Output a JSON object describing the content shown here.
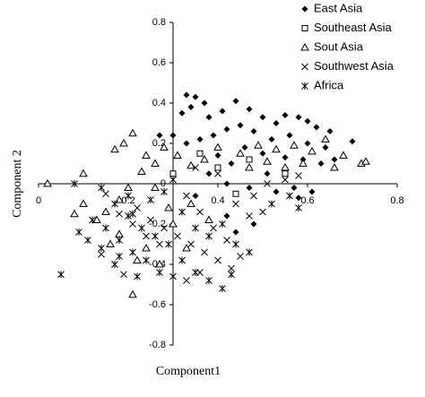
{
  "chart_data": {
    "type": "scatter",
    "xlabel": "Component1",
    "ylabel": "Component 2",
    "xlim": [
      0,
      0.8
    ],
    "ylim": [
      -0.8,
      0.8
    ],
    "xticks": [
      0,
      0.2,
      0.4,
      0.6,
      0.8
    ],
    "yticks": [
      -0.8,
      -0.6,
      -0.4,
      -0.2,
      0,
      0.2,
      0.4,
      0.6,
      0.8
    ],
    "y_axis_at_x": 0.3,
    "legend": "top-right",
    "series": [
      {
        "name": "East Asia",
        "color": "#000000",
        "marker": "diamond",
        "x": [
          0.33,
          0.35,
          0.37,
          0.34,
          0.32,
          0.38,
          0.41,
          0.44,
          0.47,
          0.5,
          0.53,
          0.55,
          0.58,
          0.6,
          0.62,
          0.65,
          0.7,
          0.56,
          0.52,
          0.48,
          0.45,
          0.42,
          0.39,
          0.36,
          0.33,
          0.3,
          0.27,
          0.46,
          0.5,
          0.55,
          0.59,
          0.63,
          0.66,
          0.6,
          0.64,
          0.43,
          0.38,
          0.42,
          0.47,
          0.53,
          0.58,
          0.35,
          0.42,
          0.44,
          0.48,
          0.4,
          0.57,
          0.61,
          0.51
        ],
        "values": [
          0.44,
          0.43,
          0.4,
          0.38,
          0.35,
          0.33,
          0.36,
          0.41,
          0.37,
          0.33,
          0.3,
          0.34,
          0.33,
          0.31,
          0.28,
          0.26,
          0.21,
          0.24,
          0.22,
          0.26,
          0.29,
          0.27,
          0.24,
          0.22,
          0.2,
          0.24,
          0.24,
          0.18,
          0.15,
          0.13,
          0.12,
          0.1,
          0.12,
          0.2,
          0.18,
          0.1,
          0.05,
          0.0,
          -0.02,
          -0.04,
          -0.07,
          -0.06,
          -0.16,
          -0.24,
          -0.2,
          0.14,
          -0.02,
          -0.04,
          0.05
        ]
      },
      {
        "name": "Southeast Asia",
        "color": "#000000",
        "marker": "square",
        "x": [
          0.36,
          0.4,
          0.47,
          0.55,
          0.3,
          0.44
        ],
        "values": [
          0.15,
          0.08,
          0.12,
          0.05,
          0.05,
          -0.05
        ]
      },
      {
        "name": "Sout Asia",
        "color": "#000000",
        "marker": "triangle",
        "x": [
          0.02,
          0.1,
          0.1,
          0.08,
          0.17,
          0.21,
          0.19,
          0.24,
          0.26,
          0.23,
          0.28,
          0.31,
          0.34,
          0.37,
          0.4,
          0.45,
          0.49,
          0.53,
          0.57,
          0.61,
          0.64,
          0.66,
          0.72,
          0.73,
          0.68,
          0.59,
          0.55,
          0.51,
          0.47,
          0.2,
          0.18,
          0.15,
          0.13,
          0.18,
          0.16,
          0.22,
          0.27,
          0.24,
          0.21,
          0.3,
          0.34,
          0.38,
          0.33,
          0.29,
          0.26
        ],
        "values": [
          0.0,
          0.05,
          -0.1,
          -0.15,
          0.17,
          0.25,
          0.2,
          0.14,
          0.1,
          0.06,
          0.18,
          0.14,
          0.09,
          0.12,
          0.18,
          0.15,
          0.19,
          0.17,
          0.19,
          0.16,
          0.22,
          0.08,
          0.1,
          0.11,
          0.14,
          0.1,
          0.08,
          0.11,
          0.08,
          -0.02,
          -0.08,
          -0.14,
          -0.18,
          -0.25,
          -0.3,
          -0.38,
          -0.4,
          -0.32,
          -0.55,
          -0.2,
          -0.1,
          -0.18,
          -0.32,
          -0.12,
          -0.02
        ]
      },
      {
        "name": "Southwest Asia",
        "color": "#000000",
        "marker": "x",
        "x": [
          0.15,
          0.18,
          0.22,
          0.25,
          0.28,
          0.31,
          0.34,
          0.37,
          0.4,
          0.43,
          0.45,
          0.42,
          0.39,
          0.36,
          0.33,
          0.3,
          0.44,
          0.48,
          0.51,
          0.55,
          0.58,
          0.27,
          0.24,
          0.21,
          0.47,
          0.5,
          0.36,
          0.33,
          0.19,
          0.14,
          0.35,
          0.4
        ],
        "values": [
          -0.05,
          -0.15,
          -0.12,
          -0.18,
          -0.22,
          -0.26,
          -0.3,
          -0.34,
          -0.38,
          -0.42,
          -0.36,
          -0.28,
          -0.22,
          -0.14,
          -0.06,
          0.02,
          -0.1,
          -0.06,
          0.0,
          0.02,
          0.04,
          -0.3,
          -0.26,
          -0.2,
          -0.16,
          -0.14,
          -0.44,
          -0.48,
          -0.45,
          -0.35,
          0.08,
          0.05
        ]
      },
      {
        "name": "Africa",
        "color": "#000000",
        "marker": "asterisk",
        "x": [
          0.08,
          0.14,
          0.17,
          0.2,
          0.23,
          0.26,
          0.29,
          0.32,
          0.35,
          0.38,
          0.41,
          0.12,
          0.15,
          0.18,
          0.21,
          0.24,
          0.27,
          0.3,
          0.17,
          0.14,
          0.11,
          0.09,
          0.18,
          0.22,
          0.2,
          0.25,
          0.28,
          0.32,
          0.35,
          0.38,
          0.41,
          0.44,
          0.47,
          0.43,
          0.52,
          0.56,
          0.58,
          0.05,
          0.21
        ],
        "values": [
          0.0,
          -0.02,
          -0.1,
          -0.16,
          -0.22,
          -0.26,
          -0.3,
          -0.38,
          -0.44,
          -0.48,
          -0.52,
          -0.18,
          -0.22,
          -0.28,
          -0.34,
          -0.38,
          -0.44,
          -0.46,
          -0.4,
          -0.32,
          -0.28,
          -0.24,
          -0.36,
          -0.46,
          -0.06,
          -0.08,
          -0.04,
          -0.14,
          -0.22,
          -0.26,
          -0.2,
          -0.3,
          -0.34,
          -0.45,
          -0.1,
          -0.06,
          -0.12,
          -0.45,
          -0.15
        ]
      }
    ]
  }
}
